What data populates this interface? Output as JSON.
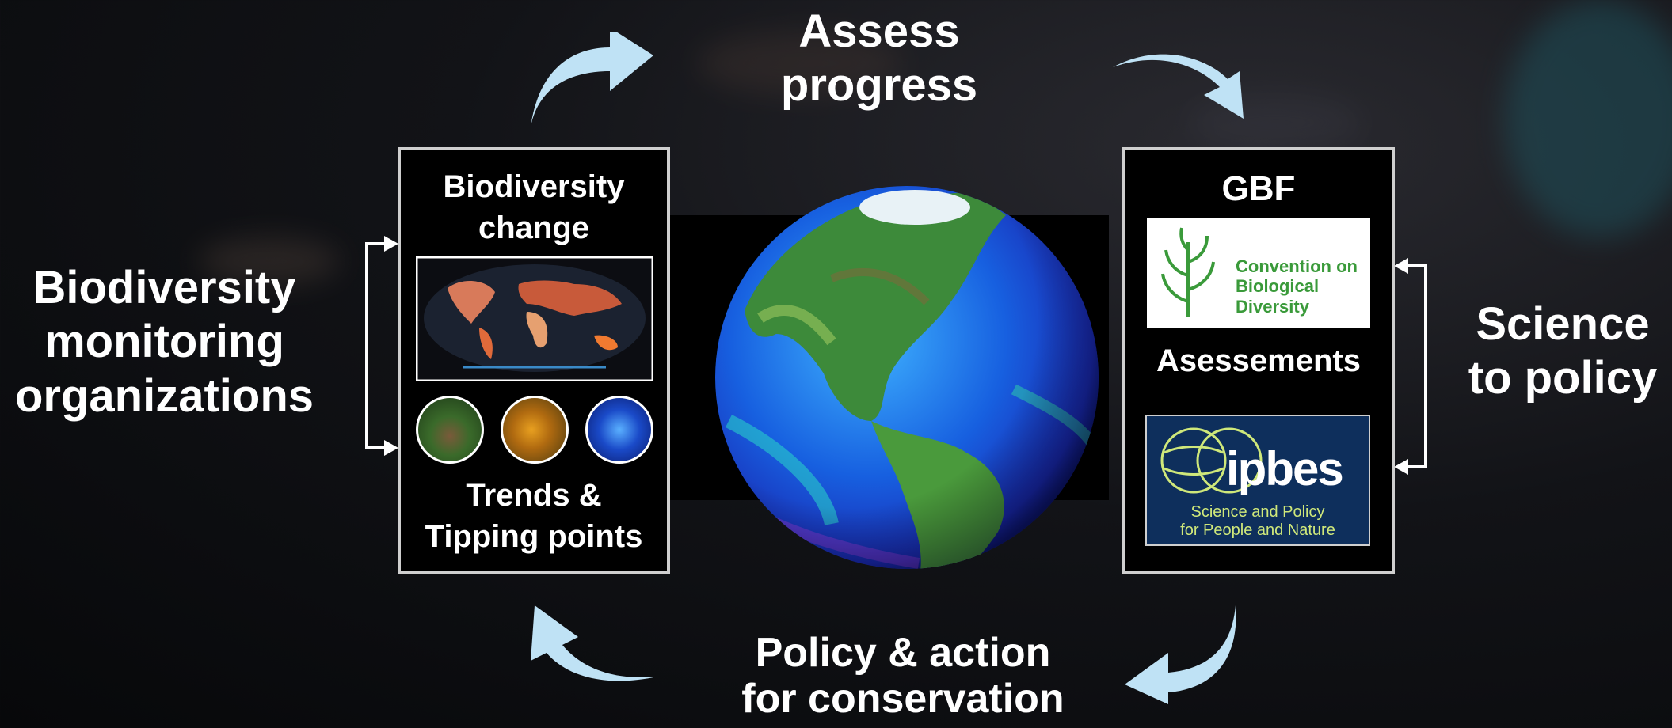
{
  "labels": {
    "assess": [
      "Assess",
      "progress"
    ],
    "policy": [
      "Policy & action",
      "for conservation"
    ],
    "monitoring": [
      "Biodiversity",
      "monitoring",
      "organizations"
    ],
    "science": [
      "Science",
      "to policy"
    ]
  },
  "left_panel": {
    "title": [
      "Biodiversity",
      "change"
    ],
    "subtitle": [
      "Trends &",
      "Tipping points"
    ]
  },
  "right_panel": {
    "title": "GBF",
    "middle": "Asessements",
    "cbd_text": [
      "Convention on",
      "Biological Diversity"
    ],
    "ipbes_name": "ipbes",
    "ipbes_tagline": [
      "Science and Policy",
      "for People and Nature"
    ]
  },
  "colors": {
    "arrow": "#bfe2f5",
    "cbd_green": "#3a9a3a",
    "ipbes_navy": "#0e2f5c",
    "ipbes_text": "#cfe87a"
  },
  "icons": [
    "cycle-arrow-icon",
    "double-headed-arrow-icon",
    "cbd-logo-icon",
    "ipbes-logo-icon",
    "globe-image"
  ]
}
